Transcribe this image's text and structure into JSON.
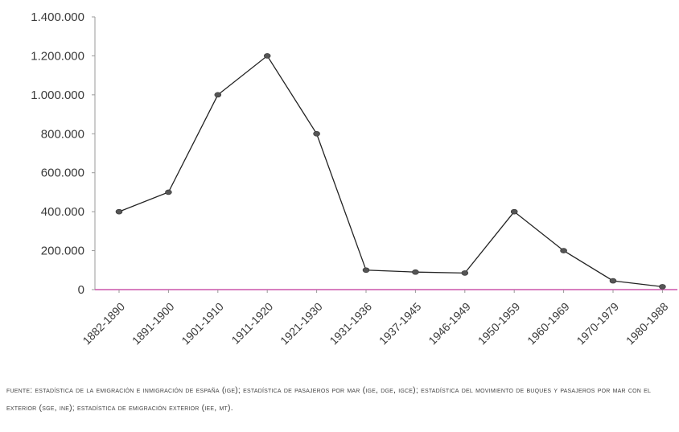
{
  "chart_data": {
    "type": "line",
    "categories": [
      "1882-1890",
      "1891-1900",
      "1901-1910",
      "1911-1920",
      "1921-1930",
      "1931-1936",
      "1937-1945",
      "1946-1949",
      "1950-1959",
      "1960-1969",
      "1970-1979",
      "1980-1988"
    ],
    "series": [
      {
        "values": [
          400000,
          500000,
          1000000,
          1200000,
          800000,
          100000,
          90000,
          85000,
          400000,
          200000,
          45000,
          15000
        ]
      }
    ],
    "yticks": [
      "0",
      "200.000",
      "400.000",
      "600.000",
      "800.000",
      "1.000.000",
      "1.200.000",
      "1.400.000"
    ],
    "ylim": [
      0,
      1400000
    ],
    "grid": false,
    "colors": {
      "line": "#222222",
      "marker": "#555555",
      "baseline": "#cc55aa",
      "axis": "#999999"
    }
  },
  "source_note": "FUENTE: ESTADÍSTICA DE LA EMIGRACIÓN E INMIGRACIÓN DE ESPAÑA (IGE); ESTADÍSTICA DE PASAJEROS POR MAR (IGE, DGE, IGCE); ESTADÍSTICA DEL MOVIMIENTO DE BUQUES Y PASAJEROS POR MAR CON EL EXTERIOR (SGE, INE); ESTADÍSTICA DE EMIGRACIÓN EXTERIOR (IEE, MT)."
}
